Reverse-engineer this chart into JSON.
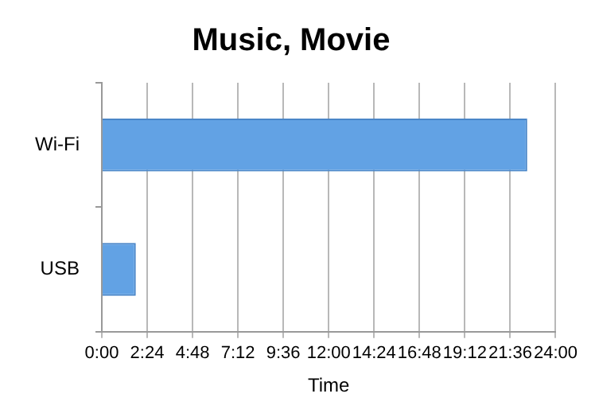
{
  "chart_data": {
    "type": "bar",
    "title": "Music, Movie",
    "xlabel": "Time",
    "orientation": "horizontal",
    "categories": [
      "Wi-Fi",
      "USB"
    ],
    "values": [
      22.5,
      1.8
    ],
    "color": "#62a2e4",
    "xlim": [
      0,
      24
    ],
    "xticks": [
      {
        "value": 0,
        "label": "0:00"
      },
      {
        "value": 2.4,
        "label": "2:24"
      },
      {
        "value": 4.8,
        "label": "4:48"
      },
      {
        "value": 7.2,
        "label": "7:12"
      },
      {
        "value": 9.6,
        "label": "9:36"
      },
      {
        "value": 12,
        "label": "12:00"
      },
      {
        "value": 14.4,
        "label": "14:24"
      },
      {
        "value": 16.8,
        "label": "16:48"
      },
      {
        "value": 19.2,
        "label": "19:12"
      },
      {
        "value": 21.6,
        "label": "21:36"
      },
      {
        "value": 24,
        "label": "24:00"
      }
    ],
    "grid": "x",
    "legend": false
  }
}
